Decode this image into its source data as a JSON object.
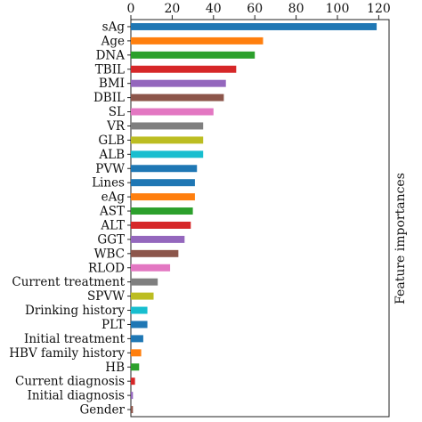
{
  "chart_data": {
    "type": "bar",
    "orientation": "horizontal",
    "title": "",
    "xlabel": "",
    "ylabel": "Feature importances",
    "xlim": [
      0,
      125
    ],
    "xticks": [
      0,
      20,
      40,
      60,
      80,
      100,
      120
    ],
    "x_axis_position": "top",
    "ylabel_position": "right",
    "grid": false,
    "legend": "none",
    "categories": [
      "sAg",
      "Age",
      "DNA",
      "TBIL",
      "BMI",
      "DBIL",
      "SL",
      "VR",
      "GLB",
      "ALB",
      "PVW",
      "Lines",
      "eAg",
      "AST",
      "ALT",
      "GGT",
      "WBC",
      "RLOD",
      "Current treatment",
      "SPVW",
      "Drinking history",
      "PLT",
      "Initial treatment",
      "HBV family history",
      "HB",
      "Current diagnosis",
      "Initial diagnosis",
      "Gender"
    ],
    "values": [
      119,
      64,
      60,
      51,
      46,
      45,
      40,
      35,
      35,
      35,
      32,
      31,
      31,
      30,
      29,
      26,
      23,
      19,
      13,
      11,
      8,
      8,
      6,
      5,
      4,
      2,
      1,
      1
    ],
    "colors": [
      "#1f77b4",
      "#ff7f0e",
      "#2ca02c",
      "#d62728",
      "#9467bd",
      "#8c564b",
      "#e377c2",
      "#7f7f7f",
      "#bcbd22",
      "#17becf",
      "#1f77b4",
      "#1f77b4",
      "#ff7f0e",
      "#2ca02c",
      "#d62728",
      "#9467bd",
      "#8c564b",
      "#e377c2",
      "#7f7f7f",
      "#bcbd22",
      "#17becf",
      "#1f77b4",
      "#1f77b4",
      "#ff7f0e",
      "#2ca02c",
      "#d62728",
      "#9467bd",
      "#8c564b"
    ]
  }
}
